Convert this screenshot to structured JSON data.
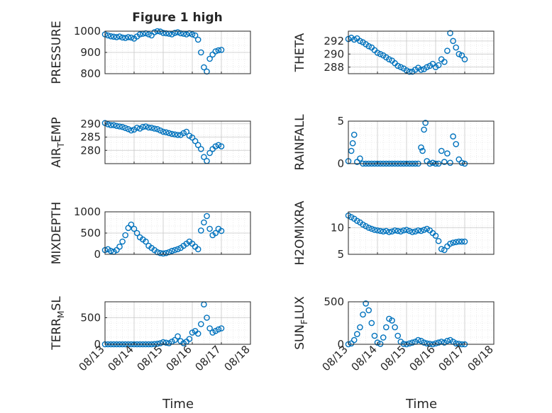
{
  "figure_title": "Figure 1 high",
  "x_axis_label": "Time",
  "x_tick_labels": [
    "08/13",
    "08/14",
    "08/15",
    "08/16",
    "08/17",
    "08/18"
  ],
  "marker_color": "#0072BD",
  "chart_data": [
    {
      "type": "scatter",
      "ylabel": "PRESSURE",
      "ylim": [
        800,
        1000
      ],
      "yticks": [
        800,
        900,
        1000
      ],
      "xlim": [
        0,
        5
      ],
      "x": [
        0.0,
        0.1,
        0.2,
        0.3,
        0.4,
        0.5,
        0.6,
        0.7,
        0.8,
        0.9,
        1.0,
        1.1,
        1.2,
        1.3,
        1.4,
        1.5,
        1.6,
        1.7,
        1.8,
        1.9,
        2.0,
        2.1,
        2.2,
        2.3,
        2.4,
        2.5,
        2.6,
        2.7,
        2.8,
        2.9,
        3.0,
        3.1,
        3.2,
        3.3,
        3.4,
        3.5,
        3.6,
        3.7,
        3.8,
        3.9,
        4.0
      ],
      "y": [
        985,
        980,
        976,
        974,
        972,
        975,
        970,
        968,
        972,
        970,
        965,
        975,
        985,
        988,
        990,
        985,
        980,
        995,
        1000,
        998,
        992,
        990,
        988,
        985,
        992,
        995,
        990,
        988,
        985,
        990,
        985,
        980,
        960,
        900,
        830,
        810,
        870,
        890,
        905,
        910,
        912
      ]
    },
    {
      "type": "scatter",
      "ylabel": "THETA",
      "ylim": [
        287,
        293.5
      ],
      "yticks": [
        288,
        290,
        292
      ],
      "xlim": [
        0,
        5
      ],
      "x": [
        0.0,
        0.1,
        0.2,
        0.3,
        0.4,
        0.5,
        0.6,
        0.7,
        0.8,
        0.9,
        1.0,
        1.1,
        1.2,
        1.3,
        1.4,
        1.5,
        1.6,
        1.7,
        1.8,
        1.9,
        2.0,
        2.1,
        2.2,
        2.3,
        2.4,
        2.5,
        2.6,
        2.7,
        2.8,
        2.9,
        3.0,
        3.1,
        3.2,
        3.3,
        3.4,
        3.5,
        3.6,
        3.7,
        3.8,
        3.9,
        4.0
      ],
      "y": [
        292.3,
        292.5,
        292.2,
        292.4,
        292.0,
        291.8,
        291.5,
        291.2,
        291.0,
        290.6,
        290.2,
        290.0,
        289.8,
        289.5,
        289.2,
        289.0,
        288.6,
        288.2,
        288.0,
        287.8,
        287.5,
        287.3,
        287.3,
        287.6,
        287.9,
        287.6,
        287.7,
        288.0,
        288.2,
        288.5,
        288.0,
        288.3,
        289.2,
        288.8,
        290.5,
        293.2,
        292.0,
        291.0,
        290.0,
        289.8,
        289.2
      ]
    },
    {
      "type": "scatter",
      "ylabel": "AIR_TEMP",
      "ylim": [
        275,
        291
      ],
      "yticks": [
        280,
        285,
        290
      ],
      "xlim": [
        0,
        5
      ],
      "x": [
        0.0,
        0.1,
        0.2,
        0.3,
        0.4,
        0.5,
        0.6,
        0.7,
        0.8,
        0.9,
        1.0,
        1.1,
        1.2,
        1.3,
        1.4,
        1.5,
        1.6,
        1.7,
        1.8,
        1.9,
        2.0,
        2.1,
        2.2,
        2.3,
        2.4,
        2.5,
        2.6,
        2.7,
        2.8,
        2.9,
        3.0,
        3.1,
        3.2,
        3.3,
        3.4,
        3.5,
        3.6,
        3.7,
        3.8,
        3.9,
        4.0
      ],
      "y": [
        290.3,
        289.8,
        289.5,
        289.5,
        289.2,
        289.0,
        288.8,
        288.4,
        288.0,
        287.5,
        287.8,
        288.5,
        288.2,
        288.8,
        289.0,
        288.6,
        288.5,
        288.2,
        288.0,
        287.5,
        287.0,
        286.8,
        286.5,
        286.2,
        286.0,
        285.8,
        285.8,
        286.5,
        287.0,
        285.5,
        284.8,
        283.5,
        282.0,
        280.5,
        277.5,
        276.0,
        279.0,
        280.5,
        281.5,
        282.0,
        281.5
      ]
    },
    {
      "type": "scatter",
      "ylabel": "RAINFALL",
      "ylim": [
        0,
        5
      ],
      "yticks": [
        0,
        5
      ],
      "xlim": [
        0,
        5
      ],
      "x": [
        0.0,
        0.1,
        0.15,
        0.2,
        0.3,
        0.4,
        0.5,
        0.6,
        0.7,
        0.8,
        0.9,
        1.0,
        1.1,
        1.2,
        1.3,
        1.4,
        1.5,
        1.6,
        1.7,
        1.8,
        1.9,
        2.0,
        2.1,
        2.2,
        2.3,
        2.4,
        2.5,
        2.55,
        2.6,
        2.65,
        2.7,
        2.8,
        2.9,
        3.0,
        3.1,
        3.2,
        3.3,
        3.4,
        3.5,
        3.6,
        3.7,
        3.8,
        3.9,
        4.0
      ],
      "y": [
        0.3,
        1.5,
        2.4,
        3.4,
        0.2,
        0.6,
        0.0,
        0.0,
        0.0,
        0.0,
        0.0,
        0.0,
        0.0,
        0.0,
        0.0,
        0.0,
        0.0,
        0.0,
        0.0,
        0.0,
        0.0,
        0.0,
        0.0,
        0.0,
        0.0,
        0.0,
        1.9,
        1.5,
        4.0,
        4.8,
        0.3,
        0.0,
        0.1,
        0.0,
        0.0,
        1.5,
        0.2,
        1.2,
        0.1,
        3.2,
        2.3,
        0.5,
        0.1,
        0.0
      ]
    },
    {
      "type": "scatter",
      "ylabel": "MIXDEPTH",
      "ylim": [
        0,
        1000
      ],
      "yticks": [
        0,
        500,
        1000
      ],
      "xlim": [
        0,
        5
      ],
      "x": [
        0.0,
        0.1,
        0.2,
        0.3,
        0.4,
        0.5,
        0.6,
        0.7,
        0.8,
        0.9,
        1.0,
        1.1,
        1.2,
        1.3,
        1.4,
        1.5,
        1.6,
        1.7,
        1.8,
        1.9,
        2.0,
        2.1,
        2.2,
        2.3,
        2.4,
        2.5,
        2.6,
        2.7,
        2.8,
        2.9,
        3.0,
        3.1,
        3.2,
        3.3,
        3.4,
        3.5,
        3.6,
        3.7,
        3.8,
        3.9,
        4.0
      ],
      "y": [
        100,
        120,
        80,
        60,
        100,
        180,
        300,
        450,
        620,
        700,
        600,
        500,
        400,
        350,
        300,
        200,
        150,
        100,
        50,
        30,
        20,
        30,
        50,
        80,
        100,
        120,
        150,
        200,
        250,
        300,
        250,
        180,
        120,
        560,
        750,
        900,
        600,
        450,
        500,
        600,
        550
      ]
    },
    {
      "type": "scatter",
      "ylabel": "H2OMIXRA",
      "ylim": [
        5,
        13
      ],
      "yticks": [
        5,
        10
      ],
      "xlim": [
        0,
        5
      ],
      "x": [
        0.0,
        0.1,
        0.2,
        0.3,
        0.4,
        0.5,
        0.6,
        0.7,
        0.8,
        0.9,
        1.0,
        1.1,
        1.2,
        1.3,
        1.4,
        1.5,
        1.6,
        1.7,
        1.8,
        1.9,
        2.0,
        2.1,
        2.2,
        2.3,
        2.4,
        2.5,
        2.6,
        2.7,
        2.8,
        2.9,
        3.0,
        3.1,
        3.2,
        3.3,
        3.4,
        3.5,
        3.6,
        3.7,
        3.8,
        3.9,
        4.0
      ],
      "y": [
        12.3,
        12.0,
        11.7,
        11.3,
        11.0,
        10.6,
        10.3,
        10.0,
        9.8,
        9.6,
        9.5,
        9.4,
        9.3,
        9.4,
        9.2,
        9.3,
        9.5,
        9.4,
        9.3,
        9.5,
        9.6,
        9.4,
        9.2,
        9.3,
        9.5,
        9.4,
        9.6,
        9.8,
        9.5,
        9.0,
        8.5,
        7.5,
        6.0,
        5.8,
        6.5,
        7.0,
        7.2,
        7.3,
        7.4,
        7.4,
        7.4
      ]
    },
    {
      "type": "scatter",
      "ylabel": "TERR_MSL",
      "ylim": [
        0,
        800
      ],
      "yticks": [
        0,
        500
      ],
      "xlim": [
        0,
        5
      ],
      "x": [
        0.0,
        0.1,
        0.2,
        0.3,
        0.4,
        0.5,
        0.6,
        0.7,
        0.8,
        0.9,
        1.0,
        1.1,
        1.2,
        1.3,
        1.4,
        1.5,
        1.6,
        1.7,
        1.8,
        1.9,
        2.0,
        2.1,
        2.2,
        2.3,
        2.4,
        2.5,
        2.6,
        2.7,
        2.8,
        2.9,
        3.0,
        3.1,
        3.2,
        3.3,
        3.4,
        3.5,
        3.6,
        3.7,
        3.8,
        3.9,
        4.0
      ],
      "y": [
        0,
        0,
        0,
        0,
        0,
        0,
        0,
        0,
        0,
        0,
        0,
        0,
        0,
        0,
        0,
        0,
        0,
        5,
        10,
        20,
        40,
        30,
        20,
        50,
        80,
        150,
        60,
        20,
        50,
        100,
        220,
        250,
        200,
        380,
        750,
        500,
        300,
        220,
        250,
        280,
        300
      ]
    },
    {
      "type": "scatter",
      "ylabel": "SUN_FLUX",
      "ylim": [
        0,
        500
      ],
      "yticks": [
        0,
        500
      ],
      "xlim": [
        0,
        5
      ],
      "x": [
        0.0,
        0.1,
        0.2,
        0.3,
        0.4,
        0.5,
        0.6,
        0.7,
        0.8,
        0.9,
        1.0,
        1.1,
        1.2,
        1.3,
        1.4,
        1.5,
        1.6,
        1.7,
        1.8,
        1.9,
        2.0,
        2.1,
        2.2,
        2.3,
        2.4,
        2.5,
        2.6,
        2.7,
        2.8,
        2.9,
        3.0,
        3.1,
        3.2,
        3.3,
        3.4,
        3.5,
        3.6,
        3.7,
        3.8,
        3.9,
        4.0
      ],
      "y": [
        0,
        10,
        50,
        120,
        200,
        350,
        480,
        400,
        250,
        100,
        20,
        5,
        80,
        200,
        300,
        280,
        200,
        100,
        30,
        5,
        0,
        10,
        20,
        30,
        50,
        40,
        20,
        10,
        5,
        0,
        10,
        20,
        30,
        20,
        40,
        50,
        30,
        10,
        5,
        0,
        0
      ]
    }
  ]
}
